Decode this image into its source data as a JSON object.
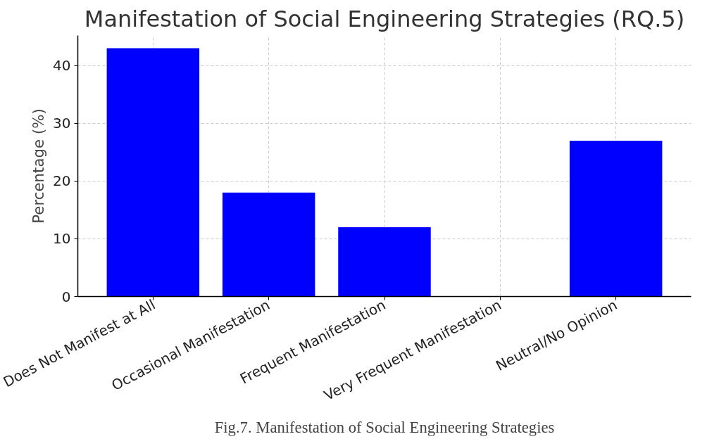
{
  "chart_data": {
    "type": "bar",
    "title": "Manifestation of Social Engineering Strategies (RQ.5)",
    "ylabel": "Percentage (%)",
    "categories": [
      "Does Not Manifest at All",
      "Occasional Manifestation",
      "Frequent Manifestation",
      "Very Frequent Manifestation",
      "Neutral/No Opinion"
    ],
    "values": [
      43,
      18,
      12,
      0,
      27
    ],
    "color": "#0000ff",
    "ylim": [
      0,
      45.2
    ],
    "yticks": [
      0,
      10,
      20,
      30,
      40
    ],
    "grid": true,
    "annotations": [
      "Fig.7. Manifestation of Social Engineering Strategies"
    ]
  }
}
